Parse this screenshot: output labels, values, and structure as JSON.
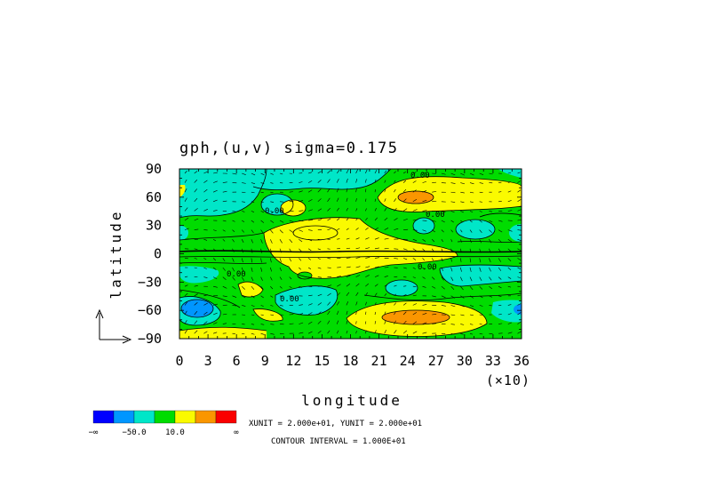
{
  "chart_data": {
    "type": "heatmap",
    "title": "gph,(u,v) sigma=0.175",
    "xlabel": "longitude",
    "ylabel": "latitude",
    "x_multiplier_label": "(×10)",
    "xlim": [
      0,
      36
    ],
    "ylim": [
      -90,
      90
    ],
    "x_ticks": [
      0,
      3,
      6,
      9,
      12,
      15,
      18,
      21,
      24,
      27,
      30,
      33,
      36
    ],
    "y_ticks": [
      90,
      60,
      30,
      0,
      -30,
      -60,
      -90
    ],
    "y_tick_labels": [
      "90",
      "60",
      "30",
      "0",
      "−30",
      "−60",
      "−90"
    ],
    "contour_labels": [
      "0.00",
      "0.00",
      "0.00",
      "0.00",
      "0.00",
      "0.00"
    ],
    "colorbar": {
      "colors": [
        "#0000ff",
        "#0096ff",
        "#00e6c8",
        "#00dc00",
        "#fafa00",
        "#fa9600",
        "#fa0000"
      ],
      "labels": [
        "−∞",
        "−50.0",
        "10.0",
        "∞"
      ]
    },
    "footnote_units": "XUNIT = 2.000e+01, YUNIT = 2.000e+01",
    "footnote_contour": "CONTOUR INTERVAL = 1.000E+01"
  }
}
